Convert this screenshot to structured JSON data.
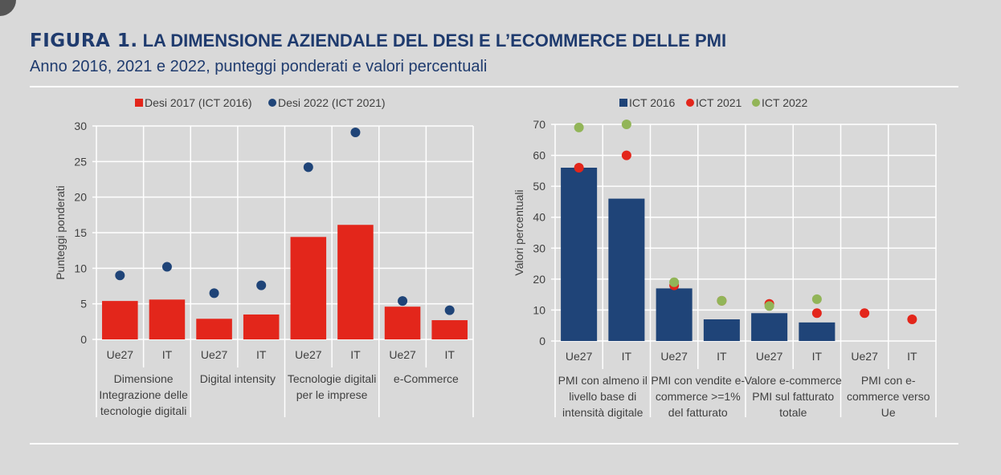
{
  "header": {
    "figure_label": "FIGURA 1.",
    "title": "LA DIMENSIONE AZIENDALE DEL DESI E L’ECOMMERCE DELLE PMI",
    "subtitle": "Anno 2016, 2021 e 2022, punteggi ponderati e valori percentuali"
  },
  "chart_data": [
    {
      "type": "bar",
      "ylabel": "Punteggi ponderati",
      "ylim": [
        0,
        30
      ],
      "yticks": [
        0,
        5,
        10,
        15,
        20,
        25,
        30
      ],
      "grid": true,
      "legend": "top",
      "categories": [
        "Ue27",
        "IT",
        "Ue27",
        "IT",
        "Ue27",
        "IT",
        "Ue27",
        "IT"
      ],
      "groups": [
        "Dimensione Integrazione delle tecnologie digitali",
        "Digital intensity",
        "Tecnologie digitali per le imprese",
        "e-Commerce"
      ],
      "group_lines": [
        [
          "Dimensione",
          "Integrazione delle",
          "tecnologie digitali"
        ],
        [
          "Digital intensity"
        ],
        [
          "Tecnologie digitali",
          "per le imprese"
        ],
        [
          "e-Commerce"
        ]
      ],
      "series": [
        {
          "name": "Desi 2017 (ICT 2016)",
          "kind": "bar",
          "color": "#e3261b",
          "values": [
            5.4,
            5.6,
            2.9,
            3.5,
            14.4,
            16.1,
            4.6,
            2.7
          ]
        },
        {
          "name": "Desi 2022 (ICT 2021)",
          "kind": "dot",
          "color": "#1f4478",
          "values": [
            9.0,
            10.2,
            6.5,
            7.6,
            24.2,
            29.1,
            5.4,
            4.1
          ]
        }
      ]
    },
    {
      "type": "bar",
      "ylabel": "Valori percentuali",
      "ylim": [
        0,
        70
      ],
      "yticks": [
        0,
        10,
        20,
        30,
        40,
        50,
        60,
        70
      ],
      "grid": true,
      "legend": "top",
      "categories": [
        "Ue27",
        "IT",
        "Ue27",
        "IT",
        "Ue27",
        "IT",
        "Ue27",
        "IT"
      ],
      "groups": [
        "PMI con almeno il livello base di intensità digitale",
        "PMI con vendite e-commerce >=1% del fatturato",
        "Valore e-commerce PMI sul fatturato totale",
        "PMI con e-commerce verso Ue"
      ],
      "group_lines": [
        [
          "PMI con almeno il",
          "livello base di",
          "intensità digitale"
        ],
        [
          "PMI con vendite e-",
          "commerce >=1%",
          "del fatturato"
        ],
        [
          "Valore e-commerce",
          "PMI sul fatturato",
          "totale"
        ],
        [
          "PMI con e-",
          "commerce verso",
          "Ue"
        ]
      ],
      "series": [
        {
          "name": "ICT 2016",
          "kind": "bar",
          "color": "#1f4478",
          "values": [
            56,
            46,
            17,
            7,
            9,
            6,
            null,
            null
          ]
        },
        {
          "name": "ICT 2021",
          "kind": "dot",
          "color": "#e3261b",
          "values": [
            56,
            60,
            18,
            13,
            12,
            9,
            9,
            7
          ]
        },
        {
          "name": "ICT 2022",
          "kind": "dot",
          "color": "#92b558",
          "values": [
            69,
            70,
            19,
            13,
            11.3,
            13.5,
            null,
            null
          ]
        }
      ]
    }
  ]
}
